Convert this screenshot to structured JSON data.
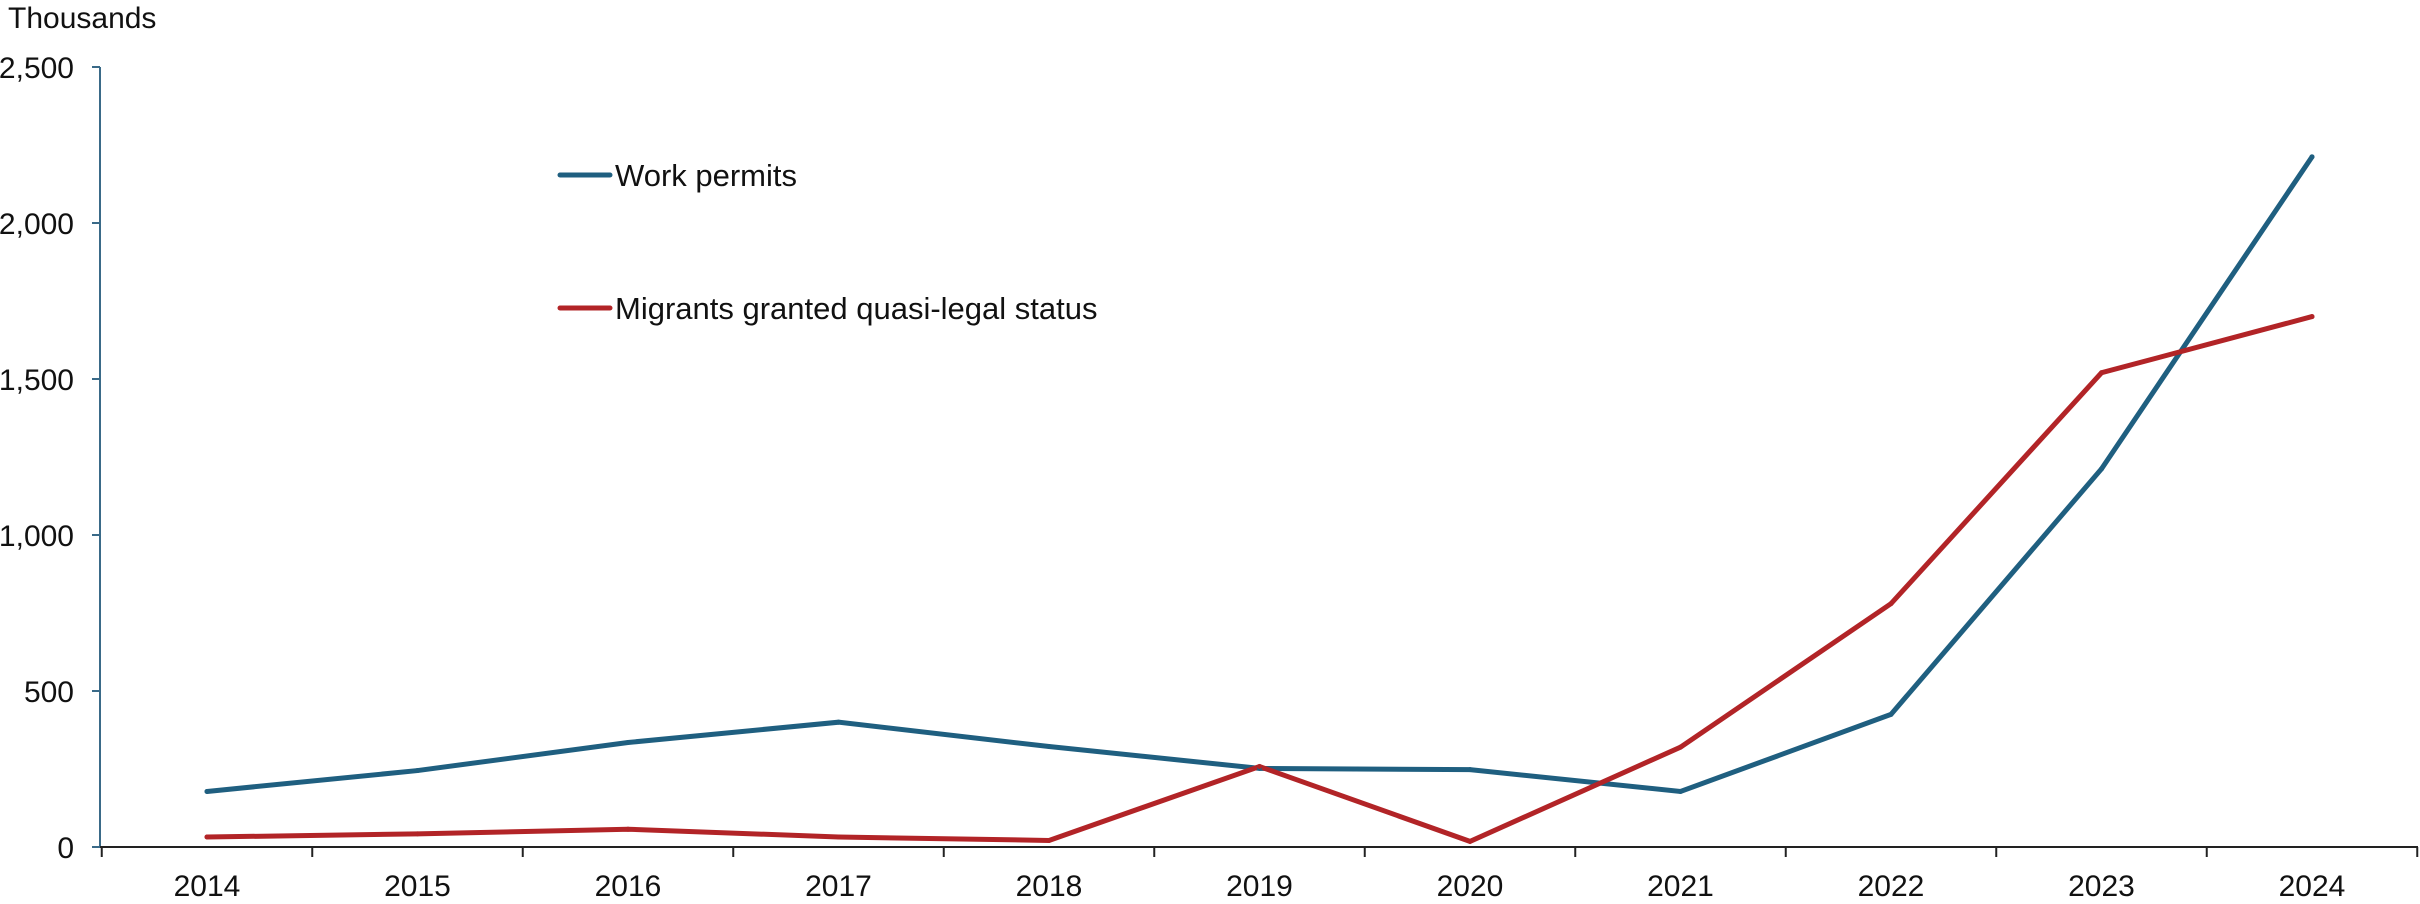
{
  "chart_data": {
    "type": "line",
    "unit_label": "Thousands",
    "x": [
      "2014",
      "2015",
      "2016",
      "2017",
      "2018",
      "2019",
      "2020",
      "2021",
      "2022",
      "2023",
      "2024"
    ],
    "ylim": [
      0,
      2500
    ],
    "yticks": [
      0,
      500,
      1000,
      1500,
      2000,
      2500
    ],
    "ytick_labels": [
      "0",
      "500",
      "1,000",
      "1,500",
      "2,000",
      "2,500"
    ],
    "grid": false,
    "legend": "upper-left, inside plot",
    "series": [
      {
        "name": "Work permits",
        "color": "#1f5f80",
        "values": [
          178,
          245,
          335,
          400,
          322,
          252,
          248,
          178,
          425,
          1212,
          2212
        ]
      },
      {
        "name": "Migrants granted quasi-legal status",
        "color": "#b22427",
        "values": [
          32,
          42,
          57,
          32,
          21,
          258,
          18,
          320,
          780,
          1520,
          1700
        ]
      }
    ]
  }
}
